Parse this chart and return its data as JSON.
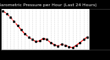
{
  "title": "Barometric Pressure per Hour (Last 24 Hours)",
  "bg_color": "#000000",
  "plot_bg": "#ffffff",
  "line_color": "#ff0000",
  "marker_color": "#000000",
  "grid_color": "#aaaaaa",
  "hours": [
    0,
    1,
    2,
    3,
    4,
    5,
    6,
    7,
    8,
    9,
    10,
    11,
    12,
    13,
    14,
    15,
    16,
    17,
    18,
    19,
    20,
    21,
    22,
    23
  ],
  "pressure": [
    30.12,
    30.02,
    29.88,
    29.72,
    29.55,
    29.38,
    29.22,
    29.1,
    29.0,
    28.92,
    28.95,
    29.05,
    29.0,
    28.88,
    28.8,
    28.75,
    28.82,
    28.78,
    28.72,
    28.68,
    28.78,
    28.88,
    29.0,
    29.1
  ],
  "ylim_min": 28.6,
  "ylim_max": 30.2,
  "ytick_step": 0.1,
  "right_panel_color": "#000000",
  "right_panel_text": "#ffffff",
  "title_fontsize": 4.5,
  "tick_fontsize": 3.2,
  "marker_size": 1.8,
  "line_width": 0.9,
  "title_bg": "#000000",
  "title_text_color": "#ffffff"
}
